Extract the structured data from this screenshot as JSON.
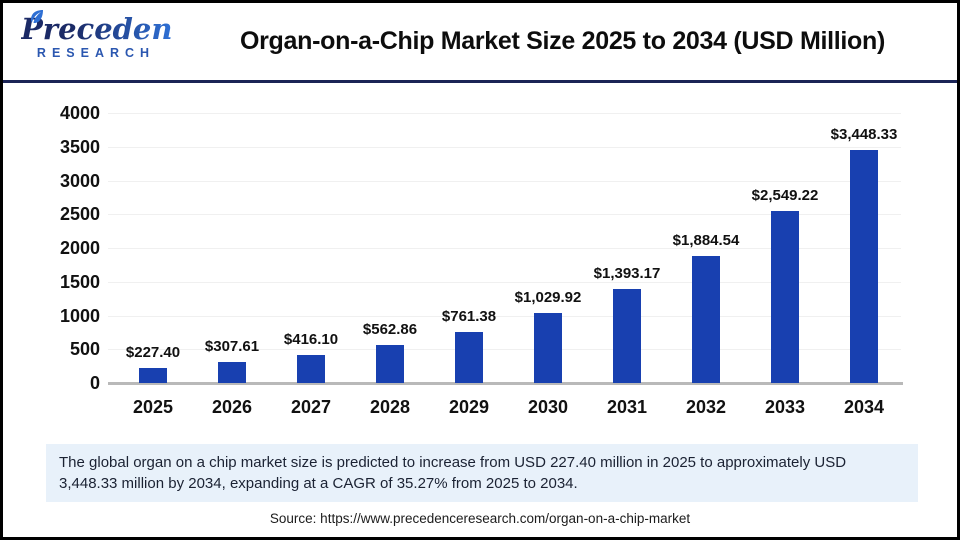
{
  "header": {
    "logo_name": "Precedence",
    "logo_sub": "RESEARCH",
    "title": "Organ-on-a-Chip Market Size 2025 to 2034 (USD Million)"
  },
  "chart_data": {
    "type": "bar",
    "categories": [
      "2025",
      "2026",
      "2027",
      "2028",
      "2029",
      "2030",
      "2031",
      "2032",
      "2033",
      "2034"
    ],
    "values": [
      227.4,
      307.61,
      416.1,
      562.86,
      761.38,
      1029.92,
      1393.17,
      1884.54,
      2549.22,
      3448.33
    ],
    "value_labels": [
      "$227.40",
      "$307.61",
      "$416.10",
      "$562.86",
      "$761.38",
      "$1,029.92",
      "$1,393.17",
      "$1,884.54",
      "$2,549.22",
      "$3,448.33"
    ],
    "title": "Organ-on-a-Chip Market Size 2025 to 2034 (USD Million)",
    "xlabel": "",
    "ylabel": "",
    "ylim": [
      0,
      4000
    ],
    "yticks": [
      0,
      500,
      1000,
      1500,
      2000,
      2500,
      3000,
      3500,
      4000
    ],
    "grid": "horizontal",
    "legend": "none"
  },
  "colors": {
    "bar": "#1840b0",
    "gridline": "#f0f0f0",
    "axis_line": "#b9b9b9",
    "header_divider": "#1b2456",
    "logo_navy": "#1b2a66",
    "logo_blue": "#2e6fd4",
    "summary_bg": "#e8f1fa",
    "leaf": "#2e6fd4"
  },
  "summary": {
    "text": "The global organ on a chip market size is predicted to increase from USD 227.40 million in 2025 to approximately USD 3,448.33 million by 2034, expanding at a CAGR of 35.27% from 2025 to 2034."
  },
  "source": {
    "text": "Source: https://www.precedenceresearch.com/organ-on-a-chip-market"
  }
}
